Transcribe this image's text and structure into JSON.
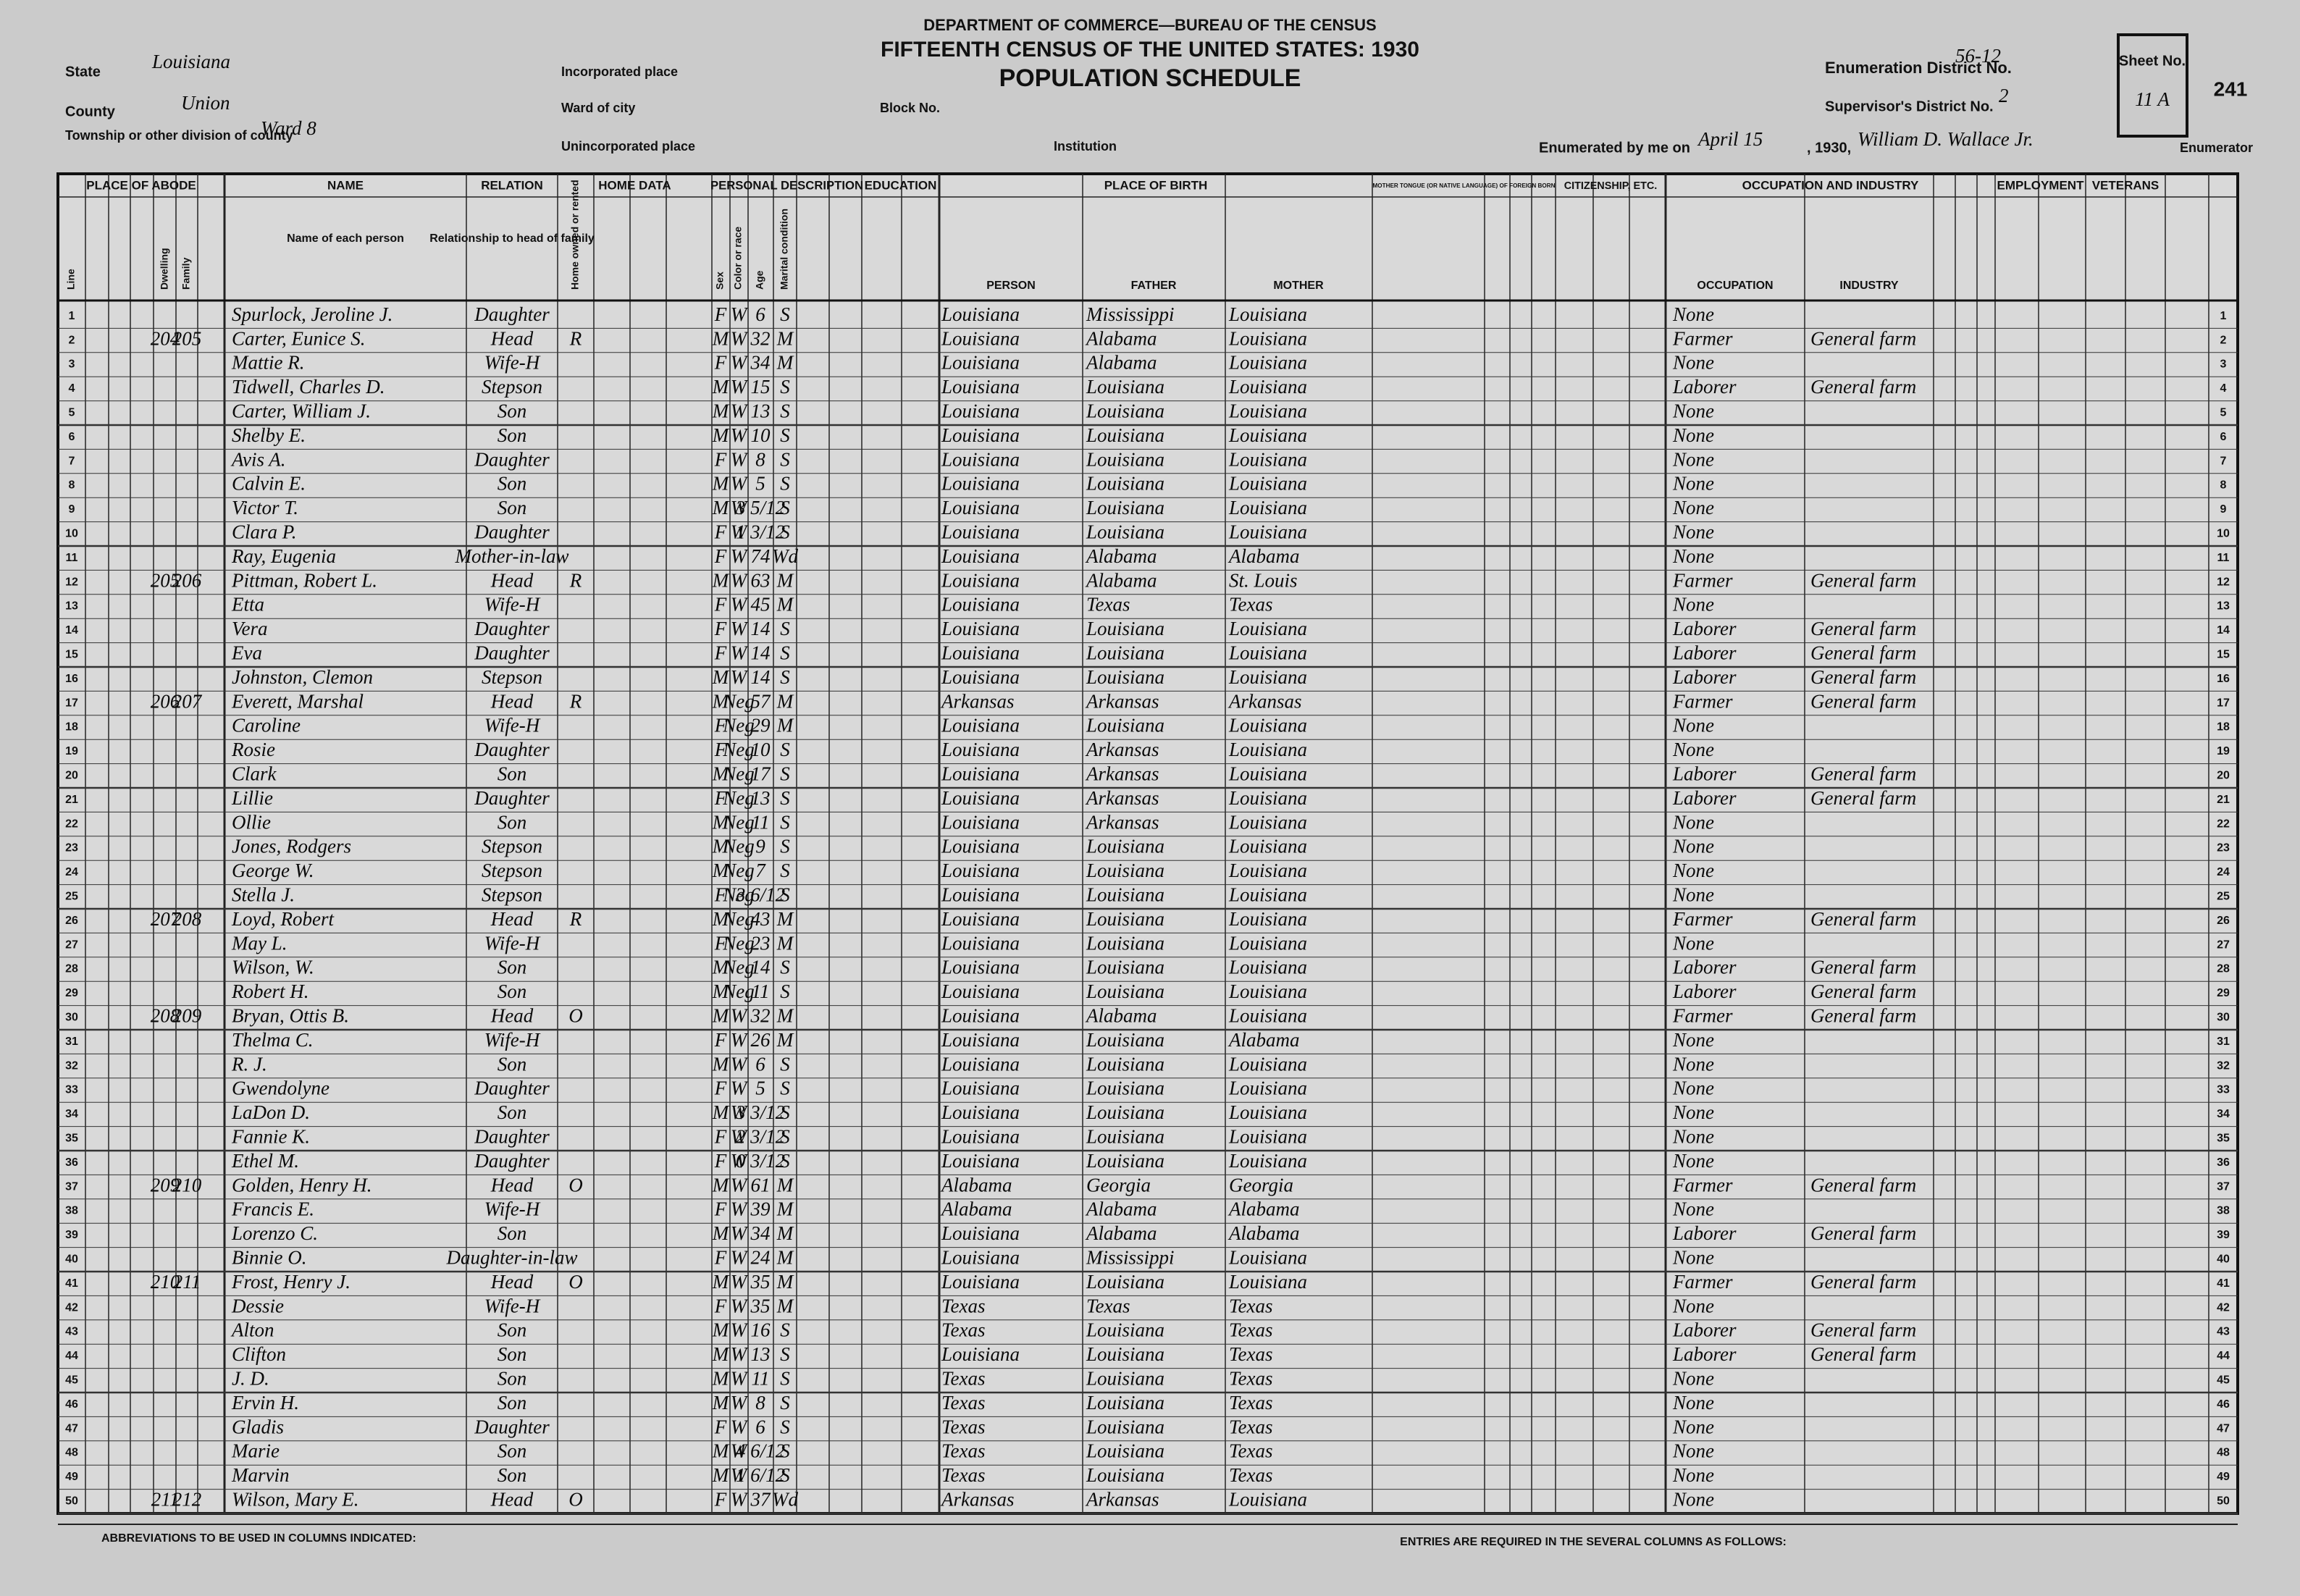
{
  "header": {
    "department": "DEPARTMENT OF COMMERCE—BUREAU OF THE CENSUS",
    "census_title": "FIFTEENTH CENSUS OF THE UNITED STATES: 1930",
    "schedule": "POPULATION SCHEDULE",
    "state_label": "State",
    "state": "Louisiana",
    "county_label": "County",
    "county": "Union",
    "township_label": "Township or other division of county",
    "township": "Ward 8",
    "incorporated_label": "Incorporated place",
    "ward_label": "Ward of city",
    "block_label": "Block No.",
    "unincorporated_label": "Unincorporated place",
    "institution_label": "Institution",
    "enumeration_district_label": "Enumeration District No.",
    "enumeration_district": "56-12",
    "supervisor_label": "Supervisor's District No.",
    "supervisor_district": "2",
    "sheet_label": "Sheet No.",
    "sheet": "11 A",
    "page_number": "241",
    "enumerated_label": "Enumerated by me on",
    "enumerated_date": "April 15",
    "year_text": ", 1930,",
    "enumerator": "William D. Wallace Jr.",
    "enumerator_suffix": "Enumerator"
  },
  "column_groups": [
    "PLACE OF ABODE",
    "NAME",
    "RELATION",
    "HOME DATA",
    "PERSONAL DESCRIPTION",
    "EDUCATION",
    "PLACE OF BIRTH",
    "MOTHER TONGUE (OR NATIVE LANGUAGE) OF FOREIGN BORN",
    "CITIZENSHIP, ETC.",
    "OCCUPATION AND INDUSTRY",
    "EMPLOYMENT",
    "VETERANS"
  ],
  "columns": [
    "Line",
    "Dwelling",
    "Family",
    "Name of each person",
    "Relationship to head of family",
    "Home owned or rented",
    "Sex",
    "Color or race",
    "Age",
    "Marital condition",
    "PERSON",
    "FATHER",
    "MOTHER",
    "OCCUPATION",
    "INDUSTRY"
  ],
  "rows": [
    [
      1,
      null,
      null,
      "Spurlock, Jeroline J.",
      "Daughter",
      null,
      "F",
      "W",
      6,
      "S",
      "Louisiana",
      "Mississippi",
      "Louisiana",
      "None",
      null
    ],
    [
      2,
      204,
      205,
      "Carter, Eunice S.",
      "Head",
      "R",
      "M",
      "W",
      32,
      "M",
      "Louisiana",
      "Alabama",
      "Louisiana",
      "Farmer",
      "General farm"
    ],
    [
      3,
      null,
      null,
      "Mattie R.",
      "Wife-H",
      null,
      "F",
      "W",
      34,
      "M",
      "Louisiana",
      "Alabama",
      "Louisiana",
      "None",
      null
    ],
    [
      4,
      null,
      null,
      "Tidwell, Charles D.",
      "Stepson",
      null,
      "M",
      "W",
      15,
      "S",
      "Louisiana",
      "Louisiana",
      "Louisiana",
      "Laborer",
      "General farm"
    ],
    [
      5,
      null,
      null,
      "Carter, William J.",
      "Son",
      null,
      "M",
      "W",
      13,
      "S",
      "Louisiana",
      "Louisiana",
      "Louisiana",
      "None",
      null
    ],
    [
      6,
      null,
      null,
      "Shelby E.",
      "Son",
      null,
      "M",
      "W",
      10,
      "S",
      "Louisiana",
      "Louisiana",
      "Louisiana",
      "None",
      null
    ],
    [
      7,
      null,
      null,
      "Avis A.",
      "Daughter",
      null,
      "F",
      "W",
      8,
      "S",
      "Louisiana",
      "Louisiana",
      "Louisiana",
      "None",
      null
    ],
    [
      8,
      null,
      null,
      "Calvin E.",
      "Son",
      null,
      "M",
      "W",
      5,
      "S",
      "Louisiana",
      "Louisiana",
      "Louisiana",
      "None",
      null
    ],
    [
      9,
      null,
      null,
      "Victor T.",
      "Son",
      null,
      "M",
      "W",
      "3 5/12",
      "S",
      "Louisiana",
      "Louisiana",
      "Louisiana",
      "None",
      null
    ],
    [
      10,
      null,
      null,
      "Clara P.",
      "Daughter",
      null,
      "F",
      "W",
      "1 3/12",
      "S",
      "Louisiana",
      "Louisiana",
      "Louisiana",
      "None",
      null
    ],
    [
      11,
      null,
      null,
      "Ray, Eugenia",
      "Mother-in-law",
      null,
      "F",
      "W",
      74,
      "Wd",
      "Louisiana",
      "Alabama",
      "Alabama",
      "None",
      null
    ],
    [
      12,
      205,
      206,
      "Pittman, Robert L.",
      "Head",
      "R",
      "M",
      "W",
      63,
      "M",
      "Louisiana",
      "Alabama",
      "St. Louis",
      "Farmer",
      "General farm"
    ],
    [
      13,
      null,
      null,
      "Etta",
      "Wife-H",
      null,
      "F",
      "W",
      45,
      "M",
      "Louisiana",
      "Texas",
      "Texas",
      "None",
      null
    ],
    [
      14,
      null,
      null,
      "Vera",
      "Daughter",
      null,
      "F",
      "W",
      14,
      "S",
      "Louisiana",
      "Louisiana",
      "Louisiana",
      "Laborer",
      "General farm"
    ],
    [
      15,
      null,
      null,
      "Eva",
      "Daughter",
      null,
      "F",
      "W",
      14,
      "S",
      "Louisiana",
      "Louisiana",
      "Louisiana",
      "Laborer",
      "General farm"
    ],
    [
      16,
      null,
      null,
      "Johnston, Clemon",
      "Stepson",
      null,
      "M",
      "W",
      14,
      "S",
      "Louisiana",
      "Louisiana",
      "Louisiana",
      "Laborer",
      "General farm"
    ],
    [
      17,
      206,
      207,
      "Everett, Marshal",
      "Head",
      "R",
      "M",
      "Neg",
      57,
      "M",
      "Arkansas",
      "Arkansas",
      "Arkansas",
      "Farmer",
      "General farm"
    ],
    [
      18,
      null,
      null,
      "Caroline",
      "Wife-H",
      null,
      "F",
      "Neg",
      29,
      "M",
      "Louisiana",
      "Louisiana",
      "Louisiana",
      "None",
      null
    ],
    [
      19,
      null,
      null,
      "Rosie",
      "Daughter",
      null,
      "F",
      "Neg",
      10,
      "S",
      "Louisiana",
      "Arkansas",
      "Louisiana",
      "None",
      null
    ],
    [
      20,
      null,
      null,
      "Clark",
      "Son",
      null,
      "M",
      "Neg",
      17,
      "S",
      "Louisiana",
      "Arkansas",
      "Louisiana",
      "Laborer",
      "General farm"
    ],
    [
      21,
      null,
      null,
      "Lillie",
      "Daughter",
      null,
      "F",
      "Neg",
      13,
      "S",
      "Louisiana",
      "Arkansas",
      "Louisiana",
      "Laborer",
      "General farm"
    ],
    [
      22,
      null,
      null,
      "Ollie",
      "Son",
      null,
      "M",
      "Neg",
      11,
      "S",
      "Louisiana",
      "Arkansas",
      "Louisiana",
      "None",
      null
    ],
    [
      23,
      null,
      null,
      "Jones, Rodgers",
      "Stepson",
      null,
      "M",
      "Neg",
      9,
      "S",
      "Louisiana",
      "Louisiana",
      "Louisiana",
      "None",
      null
    ],
    [
      24,
      null,
      null,
      "George W.",
      "Stepson",
      null,
      "M",
      "Neg",
      7,
      "S",
      "Louisiana",
      "Louisiana",
      "Louisiana",
      "None",
      null
    ],
    [
      25,
      null,
      null,
      "Stella J.",
      "Stepson",
      null,
      "F",
      "Neg",
      "3 6/12",
      "S",
      "Louisiana",
      "Louisiana",
      "Louisiana",
      "None",
      null
    ],
    [
      26,
      207,
      208,
      "Loyd, Robert",
      "Head",
      "R",
      "M",
      "Neg",
      43,
      "M",
      "Louisiana",
      "Louisiana",
      "Louisiana",
      "Farmer",
      "General farm"
    ],
    [
      27,
      null,
      null,
      "May L.",
      "Wife-H",
      null,
      "F",
      "Neg",
      23,
      "M",
      "Louisiana",
      "Louisiana",
      "Louisiana",
      "None",
      null
    ],
    [
      28,
      null,
      null,
      "Wilson, W.",
      "Son",
      null,
      "M",
      "Neg",
      14,
      "S",
      "Louisiana",
      "Louisiana",
      "Louisiana",
      "Laborer",
      "General farm"
    ],
    [
      29,
      null,
      null,
      "Robert H.",
      "Son",
      null,
      "M",
      "Neg",
      11,
      "S",
      "Louisiana",
      "Louisiana",
      "Louisiana",
      "Laborer",
      "General farm"
    ],
    [
      30,
      208,
      209,
      "Bryan, Ottis B.",
      "Head",
      "O",
      "M",
      "W",
      32,
      "M",
      "Louisiana",
      "Alabama",
      "Louisiana",
      "Farmer",
      "General farm"
    ],
    [
      31,
      null,
      null,
      "Thelma C.",
      "Wife-H",
      null,
      "F",
      "W",
      26,
      "M",
      "Louisiana",
      "Louisiana",
      "Alabama",
      "None",
      null
    ],
    [
      32,
      null,
      null,
      "R. J.",
      "Son",
      null,
      "M",
      "W",
      6,
      "S",
      "Louisiana",
      "Louisiana",
      "Louisiana",
      "None",
      null
    ],
    [
      33,
      null,
      null,
      "Gwendolyne",
      "Daughter",
      null,
      "F",
      "W",
      5,
      "S",
      "Louisiana",
      "Louisiana",
      "Louisiana",
      "None",
      null
    ],
    [
      34,
      null,
      null,
      "LaDon D.",
      "Son",
      null,
      "M",
      "W",
      "3 3/12",
      "S",
      "Louisiana",
      "Louisiana",
      "Louisiana",
      "None",
      null
    ],
    [
      35,
      null,
      null,
      "Fannie K.",
      "Daughter",
      null,
      "F",
      "W",
      "2 3/12",
      "S",
      "Louisiana",
      "Louisiana",
      "Louisiana",
      "None",
      null
    ],
    [
      36,
      null,
      null,
      "Ethel M.",
      "Daughter",
      null,
      "F",
      "W",
      "0 3/12",
      "S",
      "Louisiana",
      "Louisiana",
      "Louisiana",
      "None",
      null
    ],
    [
      37,
      209,
      210,
      "Golden, Henry H.",
      "Head",
      "O",
      "M",
      "W",
      61,
      "M",
      "Alabama",
      "Georgia",
      "Georgia",
      "Farmer",
      "General farm"
    ],
    [
      38,
      null,
      null,
      "Francis E.",
      "Wife-H",
      null,
      "F",
      "W",
      39,
      "M",
      "Alabama",
      "Alabama",
      "Alabama",
      "None",
      null
    ],
    [
      39,
      null,
      null,
      "Lorenzo C.",
      "Son",
      null,
      "M",
      "W",
      34,
      "M",
      "Louisiana",
      "Alabama",
      "Alabama",
      "Laborer",
      "General farm"
    ],
    [
      40,
      null,
      null,
      "Binnie O.",
      "Daughter-in-law",
      null,
      "F",
      "W",
      24,
      "M",
      "Louisiana",
      "Mississippi",
      "Louisiana",
      "None",
      null
    ],
    [
      41,
      210,
      211,
      "Frost, Henry J.",
      "Head",
      "O",
      "M",
      "W",
      35,
      "M",
      "Louisiana",
      "Louisiana",
      "Louisiana",
      "Farmer",
      "General farm"
    ],
    [
      42,
      null,
      null,
      "Dessie",
      "Wife-H",
      null,
      "F",
      "W",
      35,
      "M",
      "Texas",
      "Texas",
      "Texas",
      "None",
      null
    ],
    [
      43,
      null,
      null,
      "Alton",
      "Son",
      null,
      "M",
      "W",
      16,
      "S",
      "Texas",
      "Louisiana",
      "Texas",
      "Laborer",
      "General farm"
    ],
    [
      44,
      null,
      null,
      "Clifton",
      "Son",
      null,
      "M",
      "W",
      13,
      "S",
      "Louisiana",
      "Louisiana",
      "Texas",
      "Laborer",
      "General farm"
    ],
    [
      45,
      null,
      null,
      "J. D.",
      "Son",
      null,
      "M",
      "W",
      11,
      "S",
      "Texas",
      "Louisiana",
      "Texas",
      "None",
      null
    ],
    [
      46,
      null,
      null,
      "Ervin H.",
      "Son",
      null,
      "M",
      "W",
      8,
      "S",
      "Texas",
      "Louisiana",
      "Texas",
      "None",
      null
    ],
    [
      47,
      null,
      null,
      "Gladis",
      "Daughter",
      null,
      "F",
      "W",
      6,
      "S",
      "Texas",
      "Louisiana",
      "Texas",
      "None",
      null
    ],
    [
      48,
      null,
      null,
      "Marie",
      "Son",
      null,
      "M",
      "W",
      "4 6/12",
      "S",
      "Texas",
      "Louisiana",
      "Texas",
      "None",
      null
    ],
    [
      49,
      null,
      null,
      "Marvin",
      "Son",
      null,
      "M",
      "W",
      "1 6/12",
      "S",
      "Texas",
      "Louisiana",
      "Texas",
      "None",
      null
    ],
    [
      50,
      211,
      212,
      "Wilson, Mary E.",
      "Head",
      "O",
      "F",
      "W",
      37,
      "Wd",
      "Arkansas",
      "Arkansas",
      "Louisiana",
      "None",
      null
    ]
  ],
  "footer": {
    "abbreviations": "ABBREVIATIONS TO BE USED IN COLUMNS INDICATED:",
    "entries": "ENTRIES ARE REQUIRED IN THE SEVERAL COLUMNS AS FOLLOWS:"
  }
}
